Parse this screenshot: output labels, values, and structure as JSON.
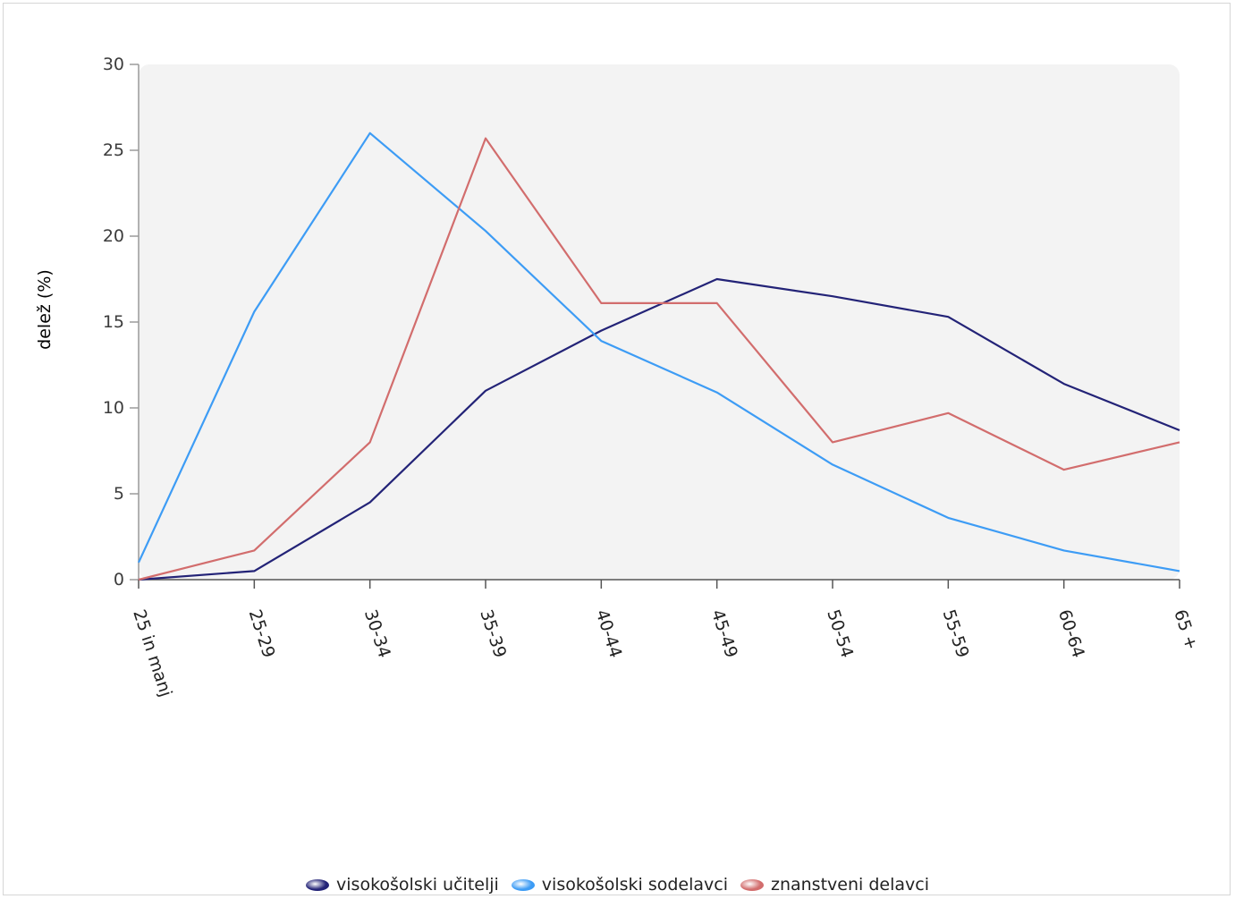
{
  "chart_data": {
    "type": "line",
    "title": "",
    "xlabel": "",
    "ylabel": "delež (%)",
    "ylim": [
      0,
      30
    ],
    "yticks": [
      0,
      5,
      10,
      15,
      20,
      25,
      30
    ],
    "grid": false,
    "legend_position": "bottom",
    "categories": [
      "25 in manj",
      "25-29",
      "30-34",
      "35-39",
      "40-44",
      "45-49",
      "50-54",
      "55-59",
      "60-64",
      "65 +"
    ],
    "series": [
      {
        "name": "visokošolski učitelji",
        "color": "#232377",
        "values": [
          0,
          0.5,
          4.5,
          11.0,
          14.5,
          17.5,
          16.5,
          15.3,
          11.4,
          8.7
        ]
      },
      {
        "name": "visokošolski sodelavci",
        "color": "#3d9cf5",
        "values": [
          1.0,
          15.6,
          26.0,
          20.3,
          13.9,
          10.9,
          6.7,
          3.6,
          1.7,
          0.5
        ]
      },
      {
        "name": "znanstveni delavci",
        "color": "#d26d6d",
        "values": [
          0,
          1.7,
          8.0,
          25.7,
          16.1,
          16.1,
          8.0,
          9.7,
          6.4,
          8.0
        ]
      }
    ]
  }
}
